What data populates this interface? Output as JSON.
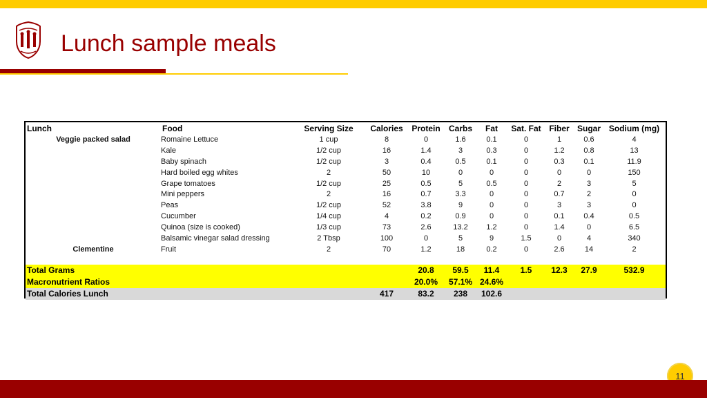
{
  "title": "Lunch sample meals",
  "page_number": "11",
  "colors": {
    "gold": "#FFCC00",
    "cardinal": "#990000",
    "highlight": "#FFFF00",
    "gray": "#D9D9D9"
  },
  "table": {
    "headers": [
      "Lunch",
      "Food",
      "Serving Size",
      "Calories",
      "Protein",
      "Carbs",
      "Fat",
      "Sat. Fat",
      "Fiber",
      "Sugar",
      "Sodium (mg)"
    ],
    "rows": [
      {
        "meal": "Veggie packed salad",
        "food": "Romaine Lettuce",
        "serving": "1 cup",
        "calories": "8",
        "protein": "0",
        "carbs": "1.6",
        "fat": "0.1",
        "satfat": "0",
        "fiber": "1",
        "sugar": "0.6",
        "sodium": "4"
      },
      {
        "meal": "",
        "food": "Kale",
        "serving": "1/2 cup",
        "calories": "16",
        "protein": "1.4",
        "carbs": "3",
        "fat": "0.3",
        "satfat": "0",
        "fiber": "1.2",
        "sugar": "0.8",
        "sodium": "13"
      },
      {
        "meal": "",
        "food": "Baby spinach",
        "serving": "1/2 cup",
        "calories": "3",
        "protein": "0.4",
        "carbs": "0.5",
        "fat": "0.1",
        "satfat": "0",
        "fiber": "0.3",
        "sugar": "0.1",
        "sodium": "11.9"
      },
      {
        "meal": "",
        "food": "Hard boiled egg whites",
        "serving": "2",
        "calories": "50",
        "protein": "10",
        "carbs": "0",
        "fat": "0",
        "satfat": "0",
        "fiber": "0",
        "sugar": "0",
        "sodium": "150"
      },
      {
        "meal": "",
        "food": "Grape tomatoes",
        "serving": "1/2 cup",
        "calories": "25",
        "protein": "0.5",
        "carbs": "5",
        "fat": "0.5",
        "satfat": "0",
        "fiber": "2",
        "sugar": "3",
        "sodium": "5"
      },
      {
        "meal": "",
        "food": "Mini peppers",
        "serving": "2",
        "calories": "16",
        "protein": "0.7",
        "carbs": "3.3",
        "fat": "0",
        "satfat": "0",
        "fiber": "0.7",
        "sugar": "2",
        "sodium": "0"
      },
      {
        "meal": "",
        "food": "Peas",
        "serving": "1/2 cup",
        "calories": "52",
        "protein": "3.8",
        "carbs": "9",
        "fat": "0",
        "satfat": "0",
        "fiber": "3",
        "sugar": "3",
        "sodium": "0"
      },
      {
        "meal": "",
        "food": "Cucumber",
        "serving": "1/4 cup",
        "calories": "4",
        "protein": "0.2",
        "carbs": "0.9",
        "fat": "0",
        "satfat": "0",
        "fiber": "0.1",
        "sugar": "0.4",
        "sodium": "0.5"
      },
      {
        "meal": "",
        "food": "Quinoa (size is cooked)",
        "serving": "1/3 cup",
        "calories": "73",
        "protein": "2.6",
        "carbs": "13.2",
        "fat": "1.2",
        "satfat": "0",
        "fiber": "1.4",
        "sugar": "0",
        "sodium": "6.5"
      },
      {
        "meal": "",
        "food": "Balsamic vinegar salad dressing",
        "serving": "2 Tbsp",
        "calories": "100",
        "protein": "0",
        "carbs": "5",
        "fat": "9",
        "satfat": "1.5",
        "fiber": "0",
        "sugar": "4",
        "sodium": "340"
      },
      {
        "meal": "Clementine",
        "food": "Fruit",
        "serving": "2",
        "calories": "70",
        "protein": "1.2",
        "carbs": "18",
        "fat": "0.2",
        "satfat": "0",
        "fiber": "2.6",
        "sugar": "14",
        "sodium": "2"
      }
    ],
    "totals": {
      "grams": {
        "label": "Total Grams",
        "calories": "",
        "protein": "20.8",
        "carbs": "59.5",
        "fat": "11.4",
        "satfat": "1.5",
        "fiber": "12.3",
        "sugar": "27.9",
        "sodium": "532.9"
      },
      "ratios": {
        "label": "Macronutrient Ratios",
        "calories": "",
        "protein": "20.0%",
        "carbs": "57.1%",
        "fat": "24.6%",
        "satfat": "",
        "fiber": "",
        "sugar": "",
        "sodium": ""
      },
      "calories": {
        "label": "Total Calories Lunch",
        "calories": "417",
        "protein": "83.2",
        "carbs": "238",
        "fat": "102.6",
        "satfat": "",
        "fiber": "",
        "sugar": "",
        "sodium": ""
      }
    }
  }
}
